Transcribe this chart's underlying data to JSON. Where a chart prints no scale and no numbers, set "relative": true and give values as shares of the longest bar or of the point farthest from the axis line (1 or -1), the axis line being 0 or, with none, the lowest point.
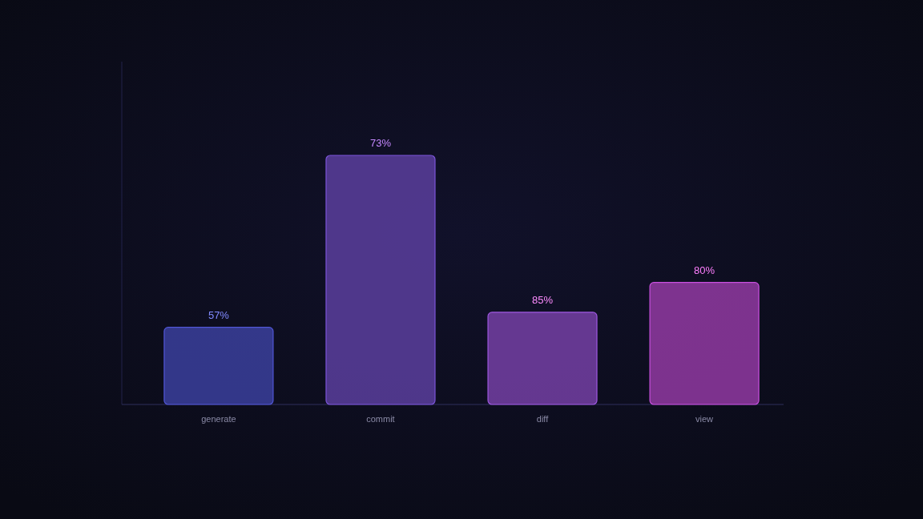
{
  "chart_data": {
    "type": "bar",
    "relative": true,
    "categories": [
      "generate",
      "commit",
      "diff",
      "view"
    ],
    "values": [
      0.31,
      1,
      0.37,
      0.49
    ],
    "colors": [
      "#3b3f9c",
      "#5a3e9e",
      "#7440a4",
      "#923aa2"
    ],
    "annotations": [
      {
        "text": "57%",
        "x": "generate",
        "y": 0.31
      },
      {
        "text": "73%",
        "x": "commit",
        "y": 1
      },
      {
        "text": "85%",
        "x": "diff",
        "y": 0.37
      },
      {
        "text": "80%",
        "x": "view",
        "y": 0.49
      }
    ]
  }
}
